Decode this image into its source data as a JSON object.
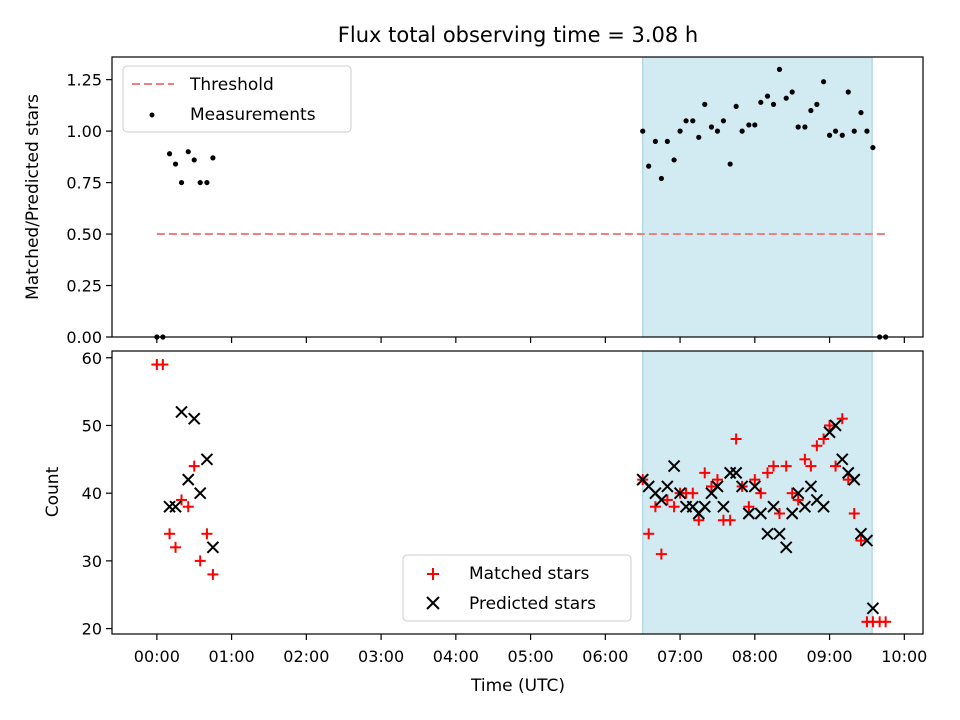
{
  "title": "Flux total observing time = 3.08 h",
  "chart_data": [
    {
      "type": "scatter",
      "panel": "top",
      "title": "Flux total observing time = 3.08 h",
      "xlabel": "",
      "ylabel": "Matched/Predicted stars",
      "xlim": [
        -0.6,
        10.25
      ],
      "ylim": [
        0,
        1.36
      ],
      "yticks": [
        0.0,
        0.25,
        0.5,
        0.75,
        1.0,
        1.25
      ],
      "ytick_labels": [
        "0.00",
        "0.25",
        "0.50",
        "0.75",
        "1.00",
        "1.25"
      ],
      "shaded_region": {
        "x": [
          6.5,
          9.57
        ],
        "color": "#add8e6"
      },
      "legend_position": "top-left",
      "series": [
        {
          "name": "Threshold",
          "style": "dashed-line",
          "color": "#f08080",
          "x": [
            0.0,
            9.75
          ],
          "y": [
            0.5,
            0.5
          ]
        },
        {
          "name": "Measurements",
          "style": "dot",
          "color": "#000000",
          "x": [
            0.0,
            0.08,
            0.17,
            0.25,
            0.33,
            0.42,
            0.5,
            0.58,
            0.67,
            0.75,
            6.5,
            6.58,
            6.67,
            6.75,
            6.83,
            6.92,
            7.0,
            7.08,
            7.17,
            7.25,
            7.33,
            7.42,
            7.5,
            7.58,
            7.67,
            7.75,
            7.83,
            7.92,
            8.0,
            8.08,
            8.17,
            8.25,
            8.33,
            8.42,
            8.5,
            8.58,
            8.67,
            8.75,
            8.83,
            8.92,
            9.0,
            9.08,
            9.17,
            9.25,
            9.33,
            9.42,
            9.5,
            9.58,
            9.67,
            9.75
          ],
          "y": [
            0.0,
            0.0,
            0.89,
            0.84,
            0.75,
            0.9,
            0.86,
            0.75,
            0.75,
            0.87,
            1.0,
            0.83,
            0.95,
            0.77,
            0.95,
            0.86,
            1.0,
            1.05,
            1.05,
            0.97,
            1.13,
            1.02,
            1.0,
            1.05,
            0.84,
            1.12,
            1.0,
            1.03,
            1.03,
            1.14,
            1.17,
            1.13,
            1.3,
            1.16,
            1.19,
            1.02,
            1.02,
            1.1,
            1.13,
            1.24,
            0.98,
            1.0,
            0.98,
            1.19,
            1.0,
            1.09,
            1.0,
            0.92,
            0.0,
            0.0
          ]
        }
      ]
    },
    {
      "type": "scatter",
      "panel": "bottom",
      "xlabel": "Time (UTC)",
      "ylabel": "Count",
      "xlim": [
        -0.6,
        10.25
      ],
      "ylim": [
        19.2,
        61
      ],
      "xticks": [
        0,
        1,
        2,
        3,
        4,
        5,
        6,
        7,
        8,
        9,
        10
      ],
      "xtick_labels": [
        "00:00",
        "01:00",
        "02:00",
        "03:00",
        "04:00",
        "05:00",
        "06:00",
        "07:00",
        "08:00",
        "09:00",
        "10:00"
      ],
      "yticks": [
        20,
        30,
        40,
        50,
        60
      ],
      "ytick_labels": [
        "20",
        "30",
        "40",
        "50",
        "60"
      ],
      "shaded_region": {
        "x": [
          6.5,
          9.57
        ],
        "color": "#add8e6"
      },
      "legend_position": "lower-center",
      "series": [
        {
          "name": "Matched stars",
          "marker": "plus",
          "color": "#ff0000",
          "x": [
            0.0,
            0.08,
            0.17,
            0.25,
            0.33,
            0.42,
            0.5,
            0.58,
            0.67,
            0.75,
            6.5,
            6.58,
            6.67,
            6.75,
            6.83,
            6.92,
            7.0,
            7.08,
            7.17,
            7.25,
            7.33,
            7.42,
            7.5,
            7.58,
            7.67,
            7.75,
            7.83,
            7.92,
            8.0,
            8.08,
            8.17,
            8.25,
            8.33,
            8.42,
            8.5,
            8.58,
            8.67,
            8.75,
            8.83,
            8.92,
            9.0,
            9.08,
            9.17,
            9.25,
            9.33,
            9.42,
            9.5,
            9.58,
            9.67,
            9.75
          ],
          "y": [
            59,
            59,
            34,
            32,
            39,
            38,
            44,
            30,
            34,
            28,
            42,
            34,
            38,
            31,
            39,
            38,
            40,
            40,
            40,
            36,
            43,
            41,
            42,
            36,
            36,
            48,
            41,
            38,
            42,
            40,
            43,
            44,
            37,
            44,
            40,
            39,
            45,
            44,
            47,
            48,
            50,
            44,
            51,
            42,
            37,
            33,
            21,
            21,
            21,
            21
          ]
        },
        {
          "name": "Predicted stars",
          "marker": "x",
          "color": "#000000",
          "x": [
            0.17,
            0.25,
            0.33,
            0.42,
            0.5,
            0.58,
            0.67,
            0.75,
            6.5,
            6.58,
            6.67,
            6.75,
            6.83,
            6.92,
            7.0,
            7.08,
            7.17,
            7.25,
            7.33,
            7.42,
            7.5,
            7.58,
            7.67,
            7.75,
            7.83,
            7.92,
            8.0,
            8.08,
            8.17,
            8.25,
            8.33,
            8.42,
            8.5,
            8.58,
            8.67,
            8.75,
            8.83,
            8.92,
            9.0,
            9.08,
            9.17,
            9.25,
            9.33,
            9.42,
            9.5,
            9.58
          ],
          "y": [
            38,
            38,
            52,
            42,
            51,
            40,
            45,
            32,
            42,
            41,
            40,
            39,
            41,
            44,
            40,
            38,
            38,
            37,
            38,
            40,
            41,
            38,
            43,
            43,
            41,
            37,
            41,
            37,
            34,
            38,
            34,
            32,
            37,
            40,
            38,
            41,
            39,
            38,
            49,
            50,
            45,
            43,
            42,
            34,
            33,
            23
          ]
        }
      ]
    }
  ]
}
